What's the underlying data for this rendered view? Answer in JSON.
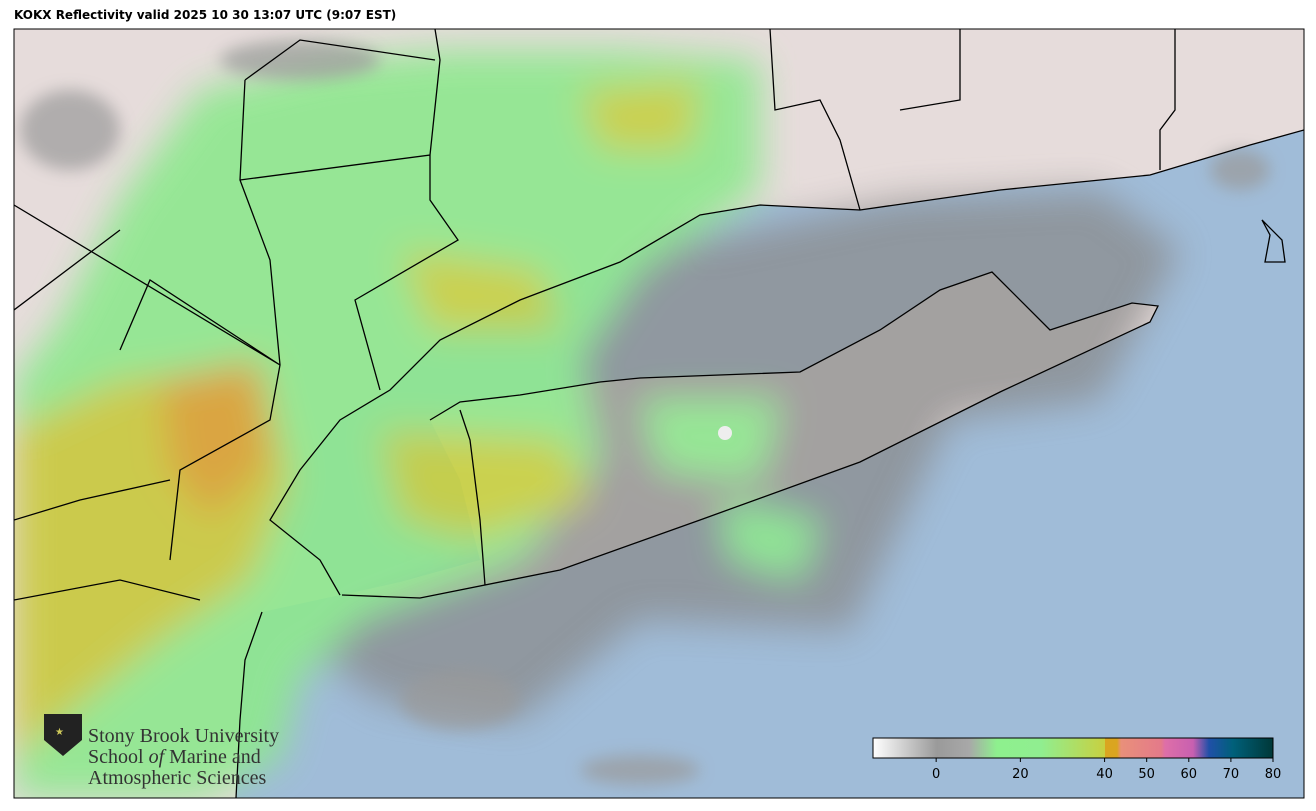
{
  "title": "KOKX Reflectivity valid 2025 10 30 13:07 UTC (9:07 EST)",
  "colorbar": {
    "range": [
      -15,
      80
    ],
    "ticks": [
      0,
      20,
      40,
      50,
      60,
      70,
      80
    ]
  },
  "logo": {
    "line1": "Stony Brook University",
    "line2": [
      "School",
      "of",
      "Marine and"
    ],
    "line3": "Atmospheric Sciences"
  }
}
